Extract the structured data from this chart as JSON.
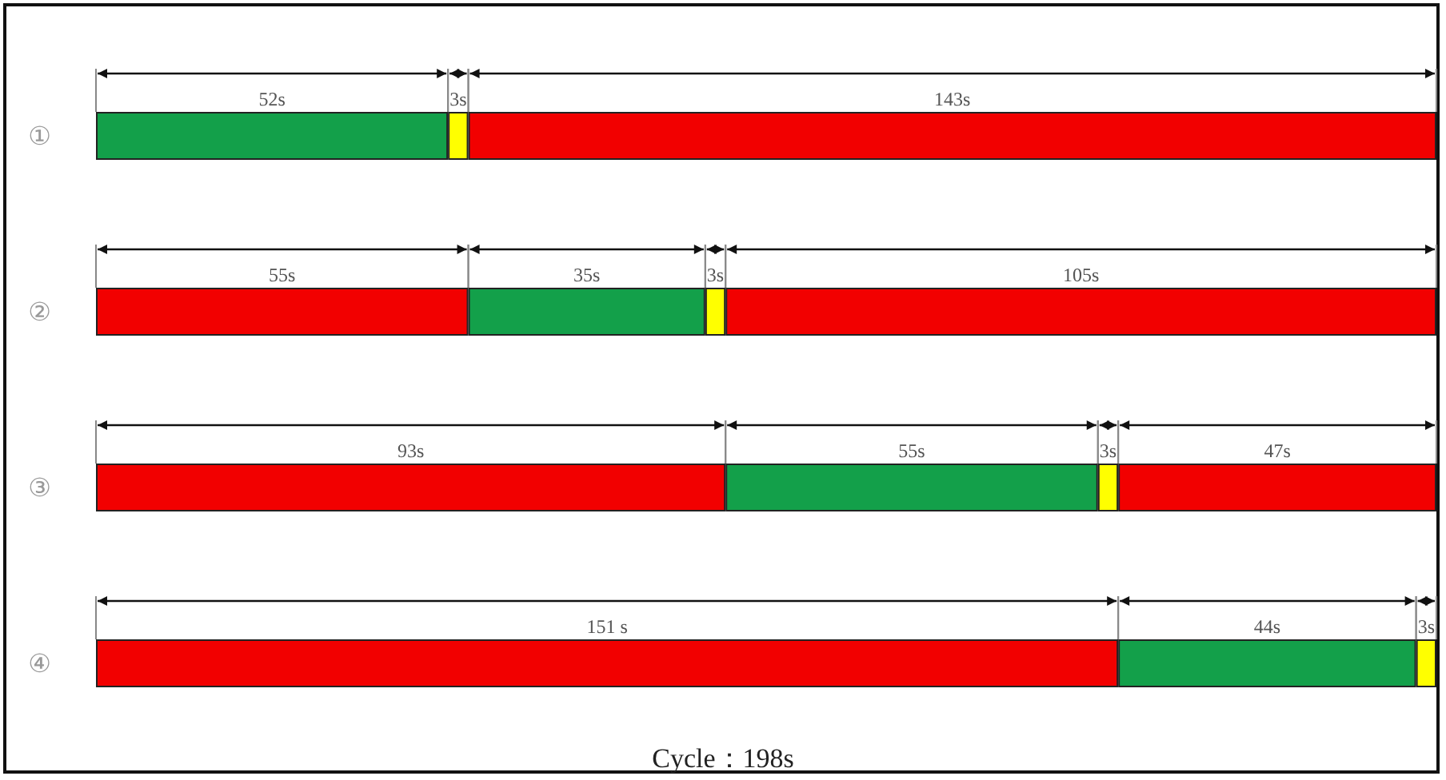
{
  "chart_data": {
    "type": "bar",
    "orientation": "horizontal",
    "stacked": true,
    "xlabel": "Cycle：198s",
    "categories": [
      "①",
      "②",
      "③",
      "④"
    ],
    "series": [
      {
        "values": [
          52,
          55,
          93,
          151
        ],
        "colors": [
          "#13a04a",
          "#f20000",
          "#f20000",
          "#f20000"
        ],
        "value_labels": [
          "52s",
          "55s",
          "93s",
          "151 s"
        ]
      },
      {
        "values": [
          3,
          35,
          55,
          44
        ],
        "colors": [
          "#ffff00",
          "#13a04a",
          "#13a04a",
          "#13a04a"
        ],
        "value_labels": [
          "3s",
          "35s",
          "55s",
          "44s"
        ]
      },
      {
        "values": [
          143,
          3,
          3,
          3
        ],
        "colors": [
          "#f20000",
          "#ffff00",
          "#ffff00",
          "#ffff00"
        ],
        "value_labels": [
          "143s",
          "3s",
          "3s",
          "3s"
        ]
      },
      {
        "values": [
          null,
          105,
          47,
          null
        ],
        "colors": [
          "#f20000",
          "#f20000",
          "#f20000",
          "#f20000"
        ],
        "value_labels": [
          null,
          "105s",
          "47s",
          null
        ]
      }
    ]
  }
}
